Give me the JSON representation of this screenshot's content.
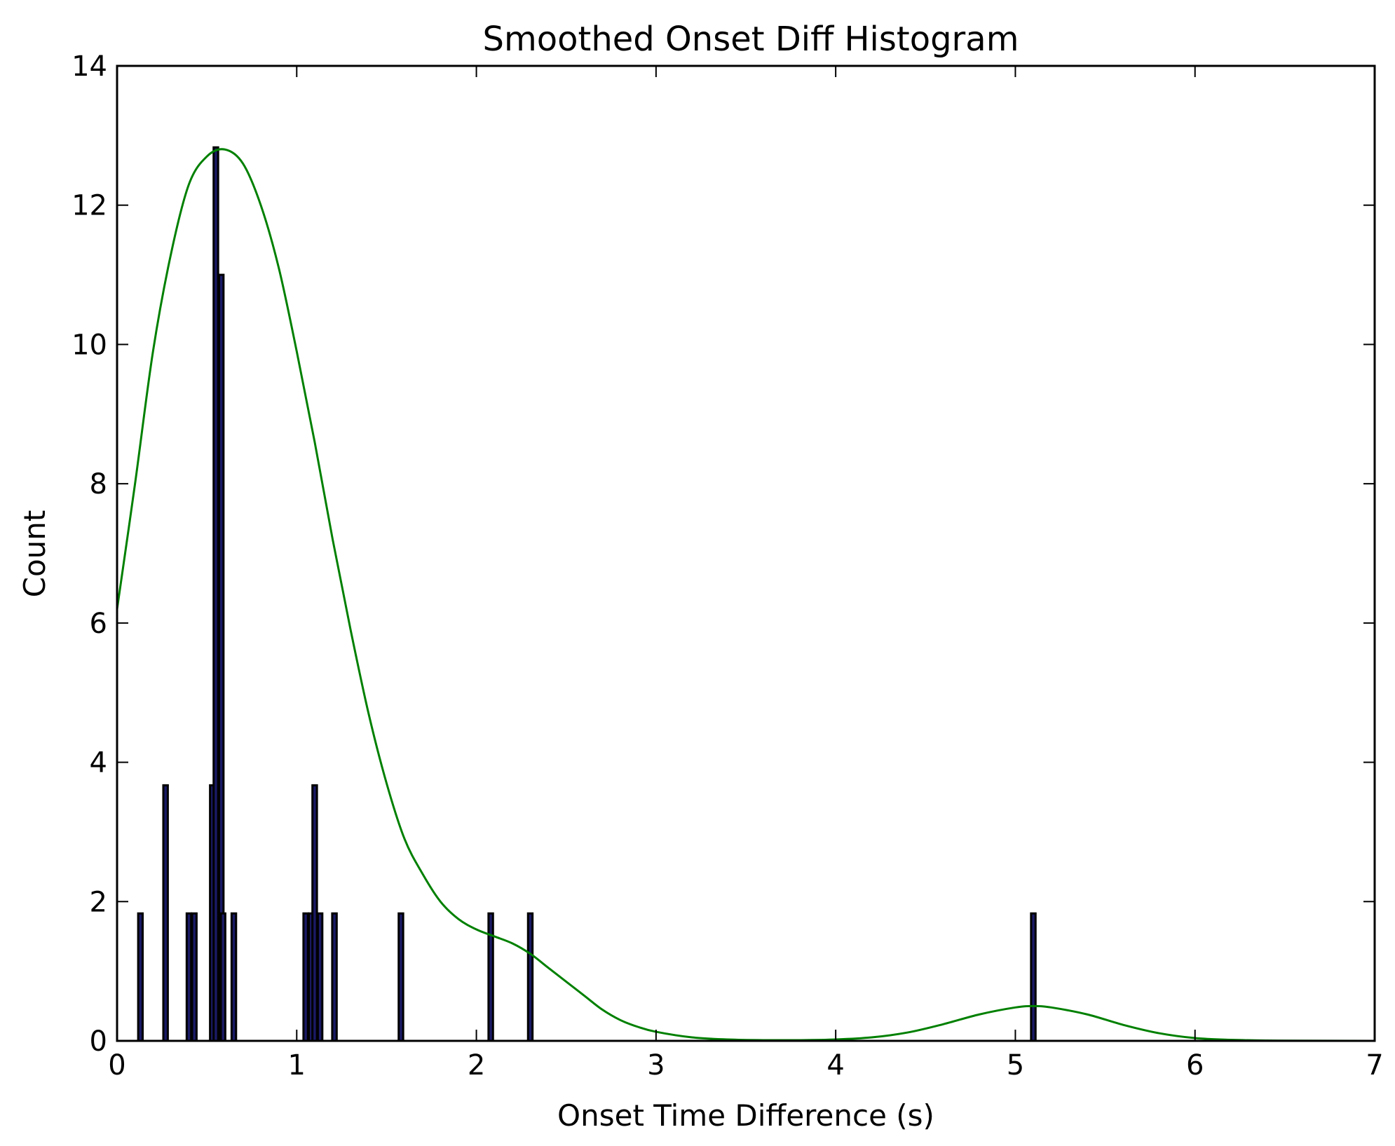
{
  "chart_data": {
    "type": "bar",
    "title": "Smoothed Onset Diff Histogram",
    "xlabel": "Onset Time Difference (s)",
    "ylabel": "Count",
    "xlim": [
      0,
      7
    ],
    "ylim": [
      0,
      14
    ],
    "xticks": [
      0,
      1,
      2,
      3,
      4,
      5,
      6,
      7
    ],
    "yticks": [
      0,
      2,
      4,
      6,
      8,
      10,
      12,
      14
    ],
    "grid": false,
    "legend": "none",
    "colors": {
      "bars": "#000000",
      "bar_fill": "#1a1a66",
      "curve": "#008000",
      "axes": "#000000"
    },
    "series": [
      {
        "name": "histogram",
        "kind": "bar",
        "bin_width": 0.025,
        "x": [
          0.13,
          0.27,
          0.4,
          0.43,
          0.53,
          0.55,
          0.58,
          0.59,
          0.65,
          1.05,
          1.08,
          1.1,
          1.13,
          1.21,
          1.58,
          2.08,
          2.3,
          5.1
        ],
        "values": [
          1.83,
          3.67,
          1.83,
          1.83,
          3.67,
          12.83,
          11.0,
          1.83,
          1.83,
          1.83,
          1.83,
          3.67,
          1.83,
          1.83,
          1.83,
          1.83,
          1.83,
          1.83
        ]
      },
      {
        "name": "smoothed density",
        "kind": "line",
        "x": [
          0.0,
          0.1,
          0.2,
          0.3,
          0.4,
          0.5,
          0.6,
          0.7,
          0.8,
          0.9,
          1.0,
          1.1,
          1.2,
          1.3,
          1.4,
          1.5,
          1.6,
          1.7,
          1.8,
          1.9,
          2.0,
          2.1,
          2.2,
          2.3,
          2.4,
          2.5,
          2.6,
          2.7,
          2.8,
          2.9,
          3.0,
          3.2,
          3.4,
          3.6,
          3.8,
          4.0,
          4.2,
          4.4,
          4.6,
          4.8,
          5.0,
          5.1,
          5.2,
          5.4,
          5.6,
          5.8,
          6.0,
          6.2,
          6.4,
          6.6,
          7.0
        ],
        "values": [
          6.2,
          8.0,
          9.9,
          11.3,
          12.3,
          12.7,
          12.8,
          12.6,
          12.0,
          11.1,
          9.9,
          8.6,
          7.2,
          5.9,
          4.7,
          3.7,
          2.9,
          2.4,
          2.0,
          1.75,
          1.6,
          1.5,
          1.4,
          1.25,
          1.05,
          0.85,
          0.65,
          0.45,
          0.3,
          0.2,
          0.13,
          0.05,
          0.02,
          0.01,
          0.01,
          0.02,
          0.05,
          0.12,
          0.24,
          0.38,
          0.48,
          0.5,
          0.48,
          0.38,
          0.23,
          0.11,
          0.04,
          0.015,
          0.005,
          0.002,
          0.0
        ]
      }
    ]
  }
}
